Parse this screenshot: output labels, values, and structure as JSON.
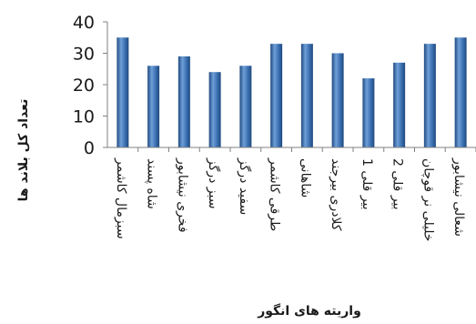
{
  "chart_data": {
    "type": "bar",
    "categories": [
      "سبزمال کاشمر",
      "شاه پسند",
      "فخری نیشابور",
      "سبز درگز",
      "سفید درگز",
      "طرقی کاشمر",
      "شاهانی",
      "کلادری بیرجند",
      "بیر قلی 1",
      "بیر قلی 2",
      "خلیلی نر قوچان",
      "شعالی نیشابور"
    ],
    "values": [
      35,
      26,
      29,
      24,
      26,
      33,
      33,
      30,
      22,
      27,
      33,
      35
    ],
    "xlabel": "واریته های انگور",
    "ylabel": "تعداد کل بلاند ها",
    "ylim": [
      0,
      40
    ],
    "yticks": [
      0,
      10,
      20,
      30,
      40
    ],
    "bar_color": "#3a6fb0",
    "bar_color_dark": "#1f4a80",
    "bar_color_light": "#6f9fd8",
    "grid": false,
    "legend": "none"
  }
}
